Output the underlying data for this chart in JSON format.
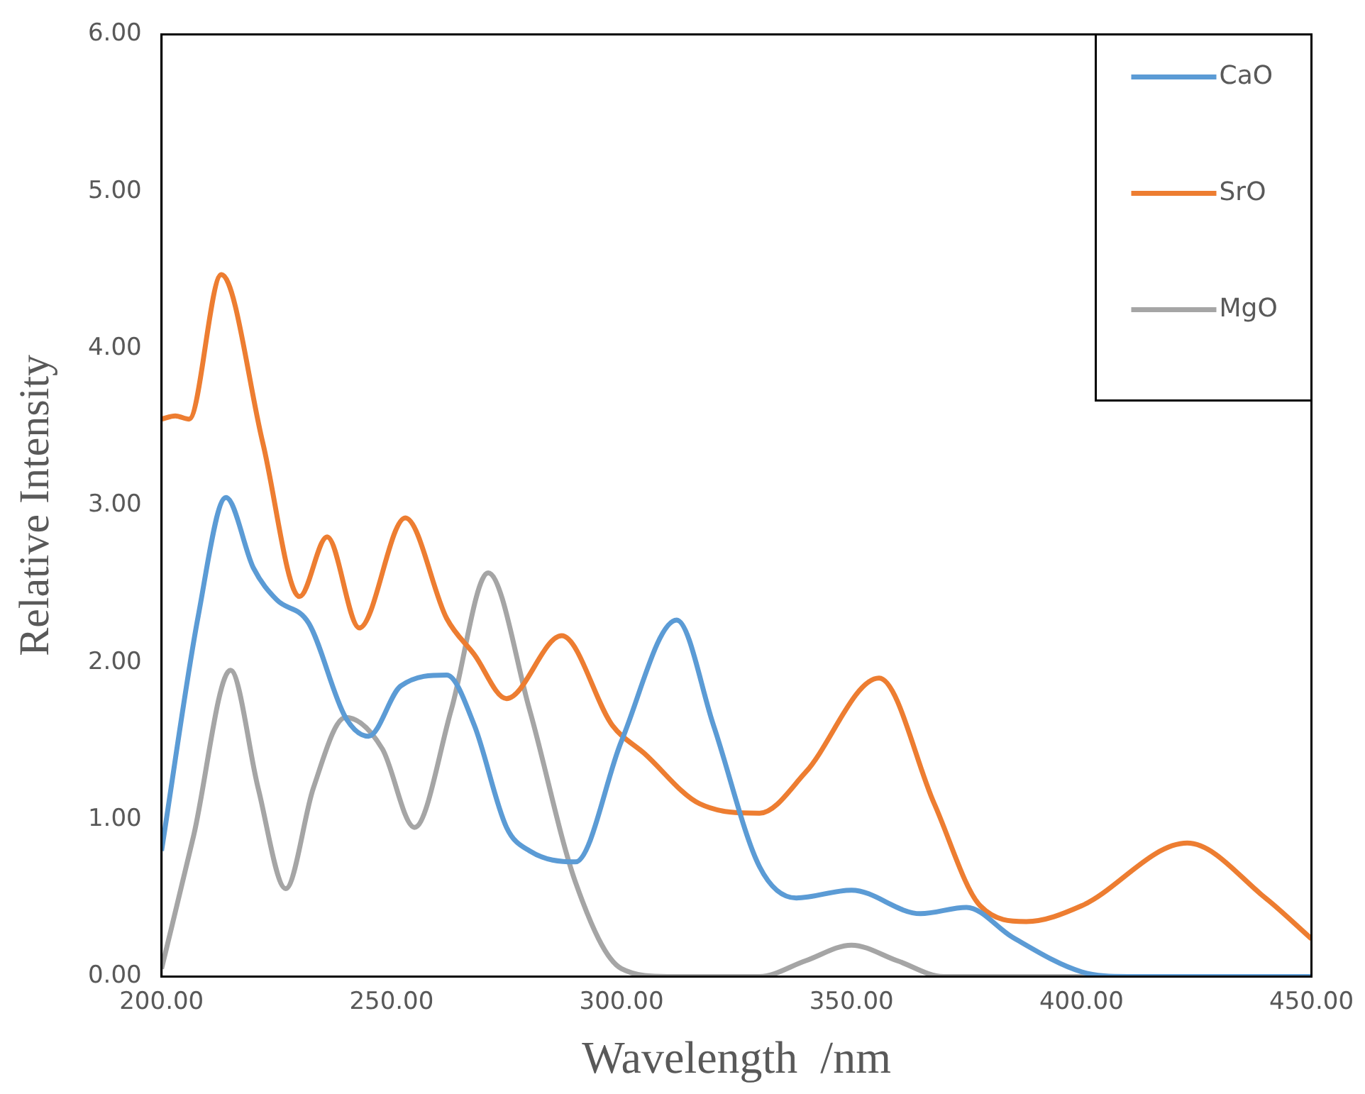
{
  "chart_data": {
    "type": "line",
    "xlabel": "Wavelength  /nm",
    "ylabel": "Relative Intensity",
    "xlim": [
      200,
      450
    ],
    "xticks": [
      {
        "value": 200,
        "label": "200.00"
      },
      {
        "value": 250,
        "label": "250.00"
      },
      {
        "value": 300,
        "label": "300.00"
      },
      {
        "value": 350,
        "label": "350.00"
      },
      {
        "value": 400,
        "label": "400.00"
      },
      {
        "value": 450,
        "label": "450.00"
      }
    ],
    "ylim": [
      0,
      6
    ],
    "yticks": [
      {
        "value": 0,
        "label": "0.00"
      },
      {
        "value": 1,
        "label": "1.00"
      },
      {
        "value": 2,
        "label": "2.00"
      },
      {
        "value": 3,
        "label": "3.00"
      },
      {
        "value": 4,
        "label": "4.00"
      },
      {
        "value": 5,
        "label": "5.00"
      },
      {
        "value": 6,
        "label": "6.00"
      }
    ],
    "grid": false,
    "legend": "top right",
    "marker": "none",
    "line_style": "solid",
    "series": [
      {
        "name": "CaO",
        "color": "#5b9bd5",
        "x": [
          200,
          208,
          214,
          220,
          225,
          232,
          240,
          245,
          252,
          262,
          268,
          275,
          280,
          290,
          300,
          312,
          320,
          330,
          338,
          350,
          365,
          375,
          385,
          400,
          410,
          450
        ],
        "values": [
          0.8,
          2.3,
          3.05,
          2.6,
          2.4,
          2.25,
          1.65,
          1.53,
          1.85,
          1.92,
          1.6,
          0.95,
          0.8,
          0.73,
          1.5,
          2.27,
          1.6,
          0.7,
          0.5,
          0.55,
          0.4,
          0.44,
          0.25,
          0.03,
          0,
          0
        ]
      },
      {
        "name": "SrO",
        "color": "#ed7d31",
        "x": [
          200,
          203,
          206,
          213,
          222,
          230,
          236,
          243,
          253,
          262,
          268,
          275,
          287,
          298,
          305,
          317,
          330,
          340,
          356,
          368,
          378,
          388,
          400,
          423,
          440,
          450
        ],
        "values": [
          3.55,
          3.57,
          3.55,
          4.47,
          3.4,
          2.42,
          2.8,
          2.22,
          2.92,
          2.28,
          2.05,
          1.77,
          2.17,
          1.6,
          1.42,
          1.1,
          1.04,
          1.3,
          1.9,
          1.1,
          0.45,
          0.35,
          0.45,
          0.85,
          0.5,
          0.24
        ]
      },
      {
        "name": "MgO",
        "color": "#a5a5a5",
        "x": [
          200,
          207,
          215,
          221,
          227,
          233,
          240,
          248,
          255,
          263,
          271,
          280,
          290,
          300,
          310,
          330,
          340,
          350,
          360,
          370,
          450
        ],
        "values": [
          0.05,
          0.9,
          1.95,
          1.2,
          0.56,
          1.2,
          1.65,
          1.45,
          0.95,
          1.7,
          2.57,
          1.7,
          0.6,
          0.05,
          0,
          0,
          0.1,
          0.2,
          0.1,
          0,
          0
        ]
      }
    ]
  }
}
